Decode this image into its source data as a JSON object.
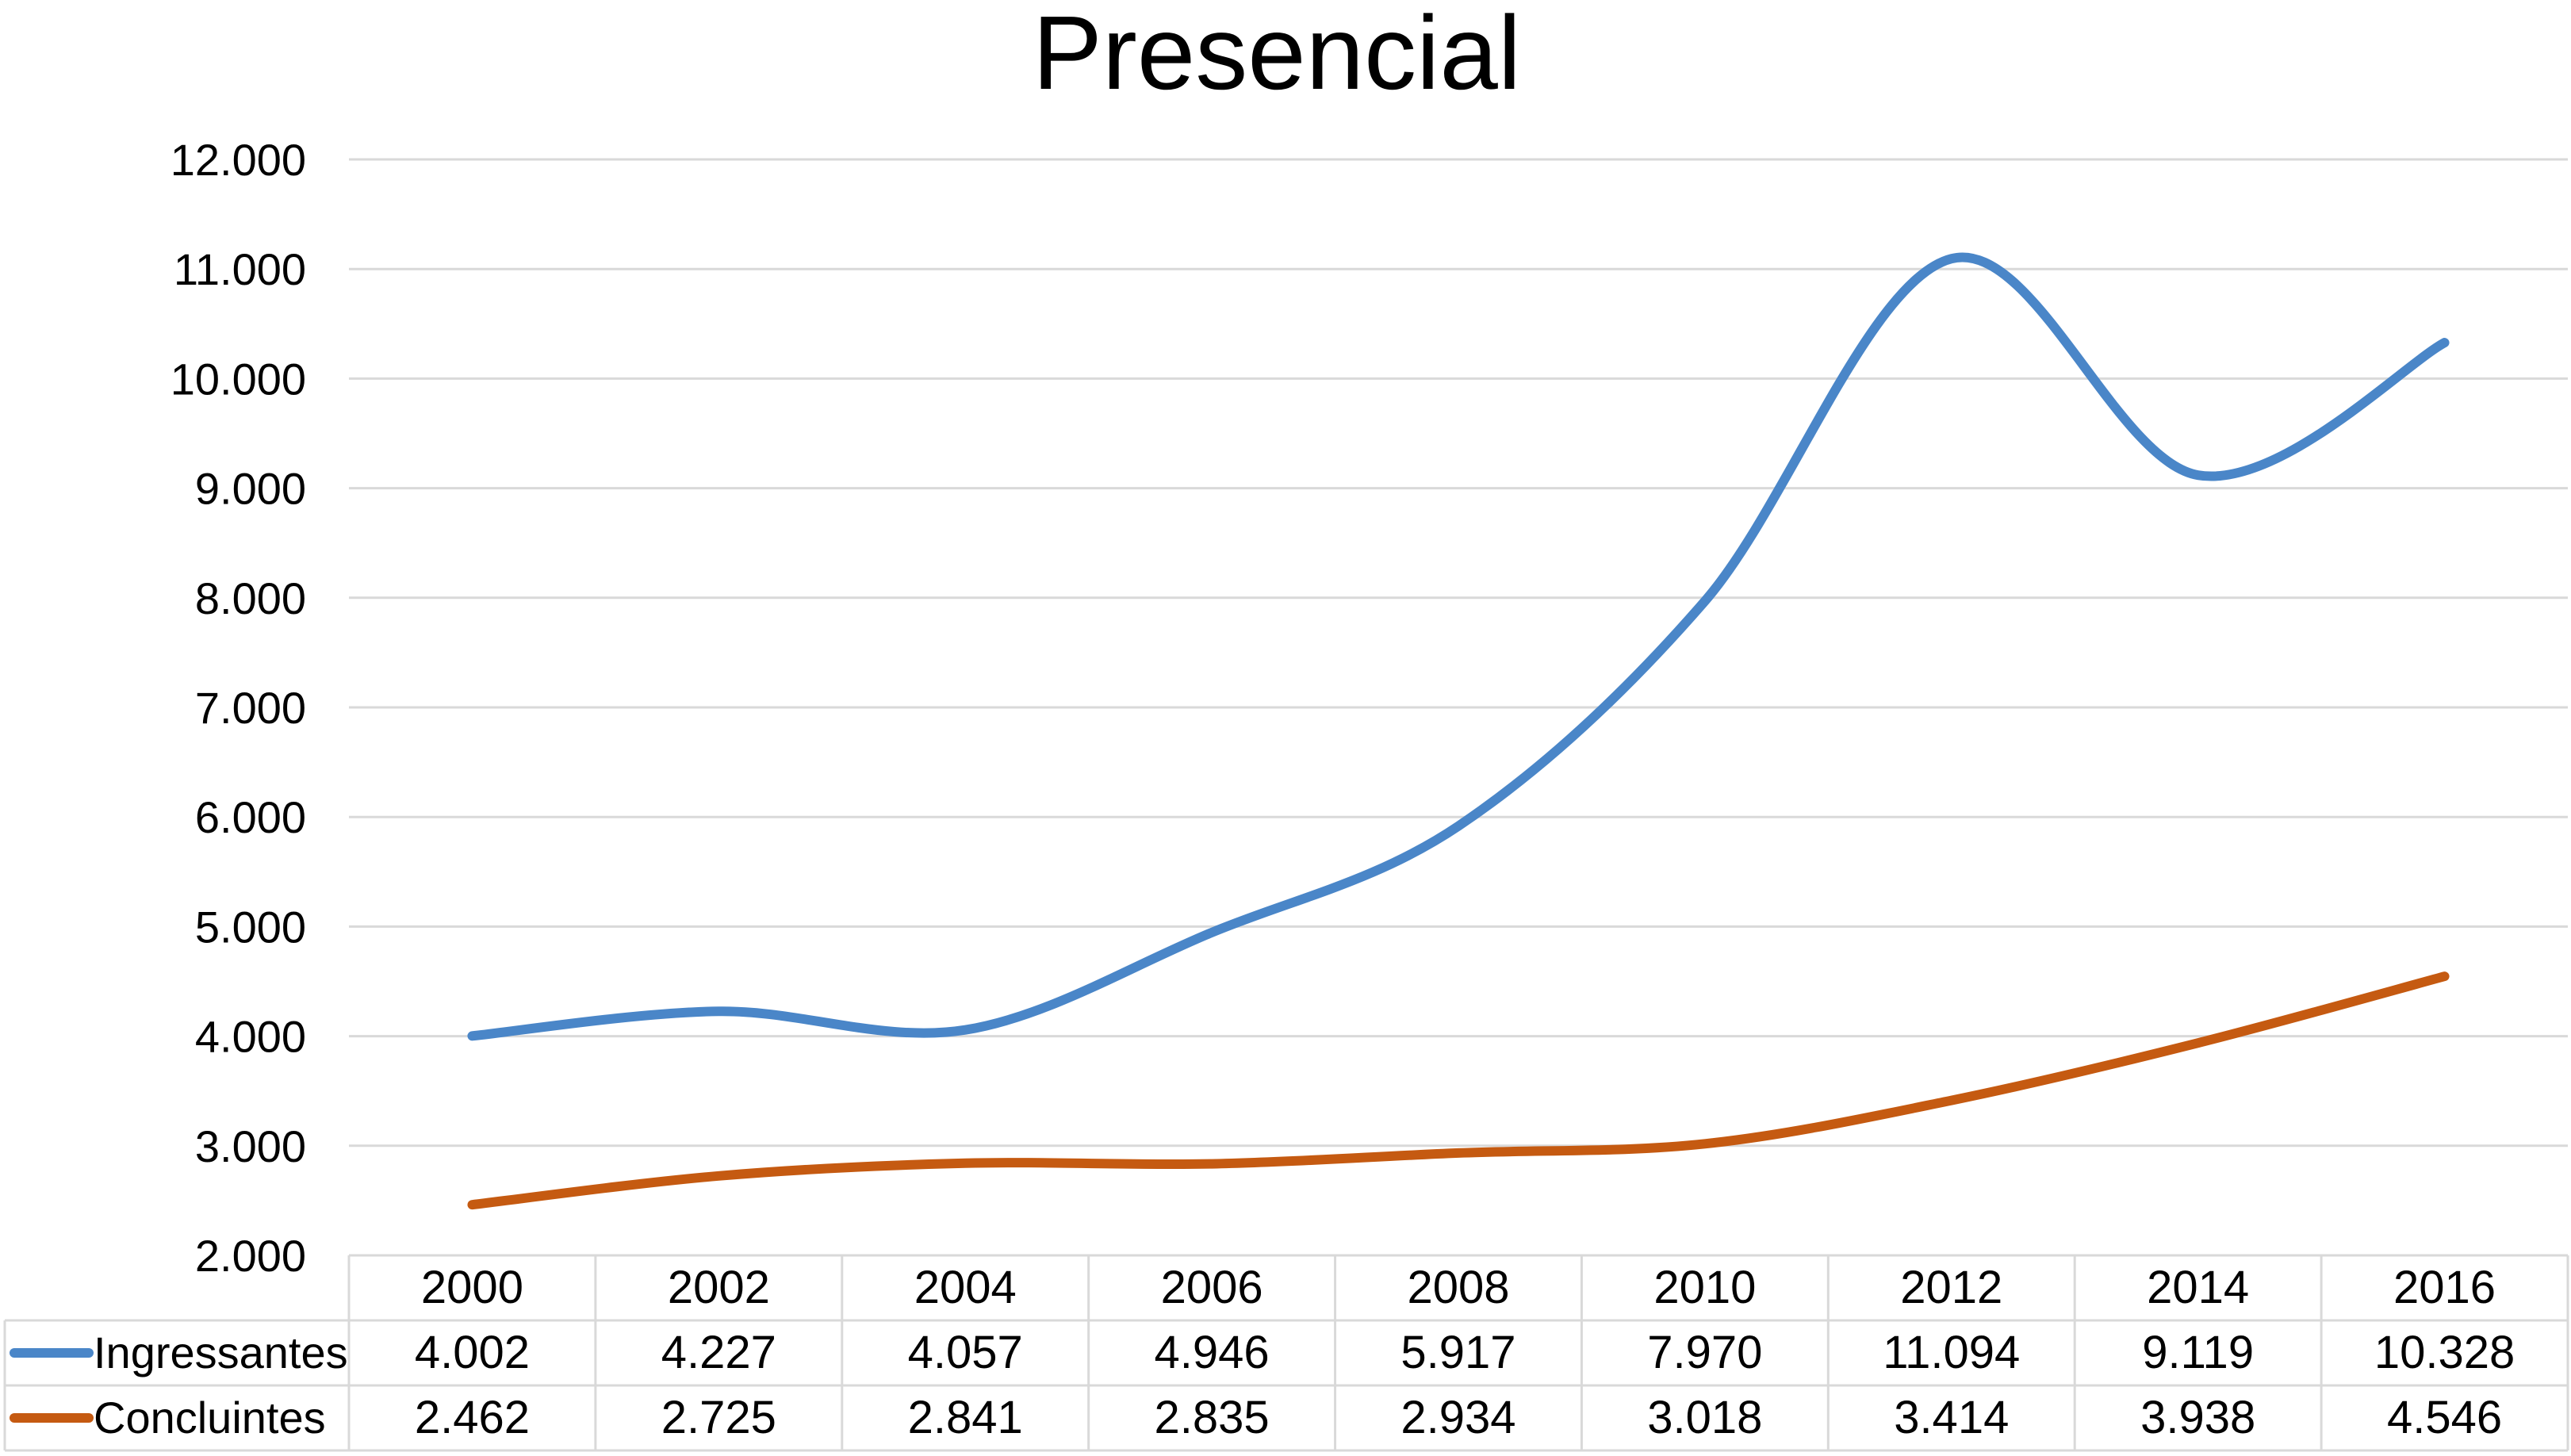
{
  "chart_data": {
    "type": "line",
    "title": "Presencial",
    "xlabel": "",
    "ylabel": "",
    "categories": [
      "2000",
      "2002",
      "2004",
      "2006",
      "2008",
      "2010",
      "2012",
      "2014",
      "2016"
    ],
    "series": [
      {
        "name": "Ingressantes",
        "color": "#4a86c8",
        "values": [
          4002,
          4227,
          4057,
          4946,
          5917,
          7970,
          11094,
          9119,
          10328
        ],
        "labels": [
          "4.002",
          "4.227",
          "4.057",
          "4.946",
          "5.917",
          "7.970",
          "11.094",
          "9.119",
          "10.328"
        ]
      },
      {
        "name": "Concluintes",
        "color": "#c55a11",
        "values": [
          2462,
          2725,
          2841,
          2835,
          2934,
          3018,
          3414,
          3938,
          4546
        ],
        "labels": [
          "2.462",
          "2.725",
          "2.841",
          "2.835",
          "2.934",
          "3.018",
          "3.414",
          "3.938",
          "4.546"
        ]
      }
    ],
    "ylim": [
      2000,
      12000
    ],
    "yticks": [
      2000,
      3000,
      4000,
      5000,
      6000,
      7000,
      8000,
      9000,
      10000,
      11000,
      12000
    ],
    "ytick_labels": [
      "2.000",
      "3.000",
      "4.000",
      "5.000",
      "6.000",
      "7.000",
      "8.000",
      "9.000",
      "10.000",
      "11.000",
      "12.000"
    ],
    "grid": true,
    "smooth": true,
    "legend": "data-table-below"
  }
}
